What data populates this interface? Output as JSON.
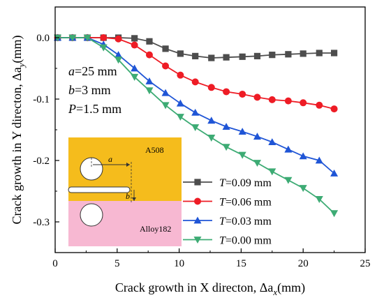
{
  "chart_data": {
    "type": "line",
    "xlabel": "Crack growth in X directon, Δax(mm)",
    "xlabel_parts": {
      "main": "Crack growth in X directon, Δa",
      "sub": "x",
      "unit": "(mm)"
    },
    "ylabel": "Crack growth in Y directon, Δay(mm)",
    "ylabel_parts": {
      "main": "Crack growth in Y directon, Δa",
      "sub": "y",
      "unit": "(mm)"
    },
    "xlim": [
      0,
      25
    ],
    "ylim": [
      -0.35,
      0.05
    ],
    "xticks": [
      "0",
      "5",
      "10",
      "15",
      "20",
      "25"
    ],
    "yticks": [
      "0.0",
      "-0.1",
      "-0.2",
      "-0.3"
    ],
    "grid": false,
    "legend_position": "bottom-right",
    "annotations": [
      {
        "var": "a",
        "rest": "=25 mm"
      },
      {
        "var": "b",
        "rest": "=3 mm"
      },
      {
        "var": "P",
        "rest": "=1.5 mm"
      }
    ],
    "inset": {
      "top_label": "A508",
      "bottom_label": "Alloy182",
      "dim_a": "a",
      "dim_b": "b",
      "top_color": "#F5BC1C",
      "bottom_color": "#F7B8D2"
    },
    "series": [
      {
        "name": "T=0.09 mm",
        "var": "T",
        "rest": "=0.09 mm",
        "color": "#4D4D4D",
        "marker": "square",
        "x": [
          0.2,
          1.4,
          2.6,
          3.9,
          5.1,
          6.4,
          7.6,
          8.9,
          10.1,
          11.3,
          12.6,
          13.8,
          15.1,
          16.3,
          17.5,
          18.8,
          20.0,
          21.3,
          22.5
        ],
        "y": [
          0.0,
          0.0,
          0.0,
          0.0,
          0.0,
          -0.001,
          -0.006,
          -0.018,
          -0.026,
          -0.03,
          -0.033,
          -0.032,
          -0.031,
          -0.03,
          -0.028,
          -0.027,
          -0.026,
          -0.025,
          -0.025
        ]
      },
      {
        "name": "T=0.06 mm",
        "var": "T",
        "rest": "=0.06 mm",
        "color": "#EE1C25",
        "marker": "circle",
        "x": [
          0.2,
          1.4,
          2.6,
          3.9,
          5.1,
          6.4,
          7.6,
          8.9,
          10.1,
          11.3,
          12.6,
          13.8,
          15.1,
          16.3,
          17.5,
          18.8,
          20.0,
          21.3,
          22.5
        ],
        "y": [
          0.0,
          0.0,
          0.0,
          0.0,
          -0.002,
          -0.012,
          -0.028,
          -0.046,
          -0.061,
          -0.072,
          -0.081,
          -0.088,
          -0.092,
          -0.097,
          -0.101,
          -0.103,
          -0.106,
          -0.11,
          -0.116
        ]
      },
      {
        "name": "T=0.03 mm",
        "var": "T",
        "rest": "=0.03 mm",
        "color": "#1F55D6",
        "marker": "triangle-up",
        "x": [
          0.2,
          1.4,
          2.6,
          3.9,
          5.1,
          6.4,
          7.6,
          8.9,
          10.1,
          11.3,
          12.6,
          13.8,
          15.1,
          16.3,
          17.5,
          18.8,
          20.0,
          21.3,
          22.5
        ],
        "y": [
          0.0,
          0.0,
          0.0,
          -0.011,
          -0.028,
          -0.05,
          -0.071,
          -0.09,
          -0.107,
          -0.122,
          -0.135,
          -0.145,
          -0.153,
          -0.161,
          -0.17,
          -0.182,
          -0.193,
          -0.2,
          -0.221
        ]
      },
      {
        "name": "T=0.00 mm",
        "var": "T",
        "rest": "=0.00 mm",
        "color": "#3DAB74",
        "marker": "triangle-down",
        "x": [
          0.2,
          1.4,
          2.6,
          3.9,
          5.1,
          6.4,
          7.6,
          8.9,
          10.1,
          11.3,
          12.6,
          13.8,
          15.1,
          16.3,
          17.5,
          18.8,
          20.0,
          21.3,
          22.5
        ],
        "y": [
          0.0,
          0.0,
          0.0,
          -0.016,
          -0.036,
          -0.064,
          -0.086,
          -0.11,
          -0.129,
          -0.146,
          -0.163,
          -0.178,
          -0.191,
          -0.204,
          -0.218,
          -0.232,
          -0.245,
          -0.263,
          -0.286
        ]
      }
    ]
  }
}
